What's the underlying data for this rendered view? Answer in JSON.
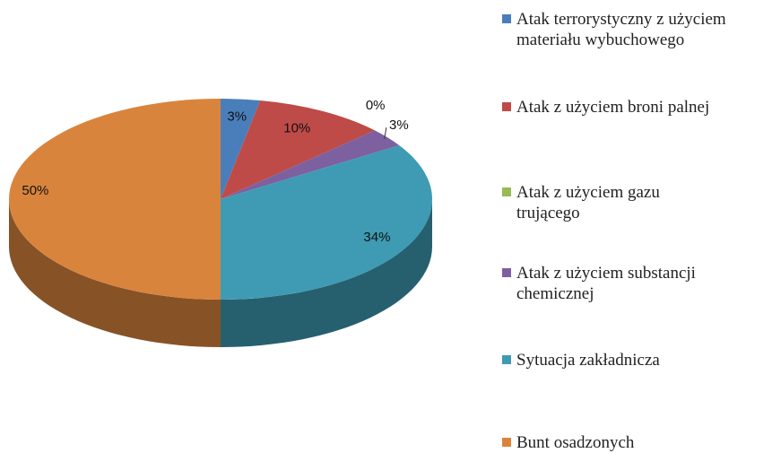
{
  "chart_data": {
    "type": "pie",
    "categories": [
      "Atak terrorystyczny z użyciem materiału wybuchowego",
      "Atak z użyciem broni palnej",
      "Atak z użyciem gazu trującego",
      "Atak z użyciem substancji chemicznej",
      "Sytuacja zakładnicza",
      "Bunt osadzonych"
    ],
    "values": [
      3,
      10,
      0,
      3,
      34,
      50
    ],
    "value_labels": [
      "3%",
      "10%",
      "0%",
      "3%",
      "34%",
      "50%"
    ],
    "colors": [
      "#4a7ebb",
      "#be4b48",
      "#98b954",
      "#7d60a0",
      "#3e9bb3",
      "#d9843d"
    ],
    "legend": "right"
  }
}
